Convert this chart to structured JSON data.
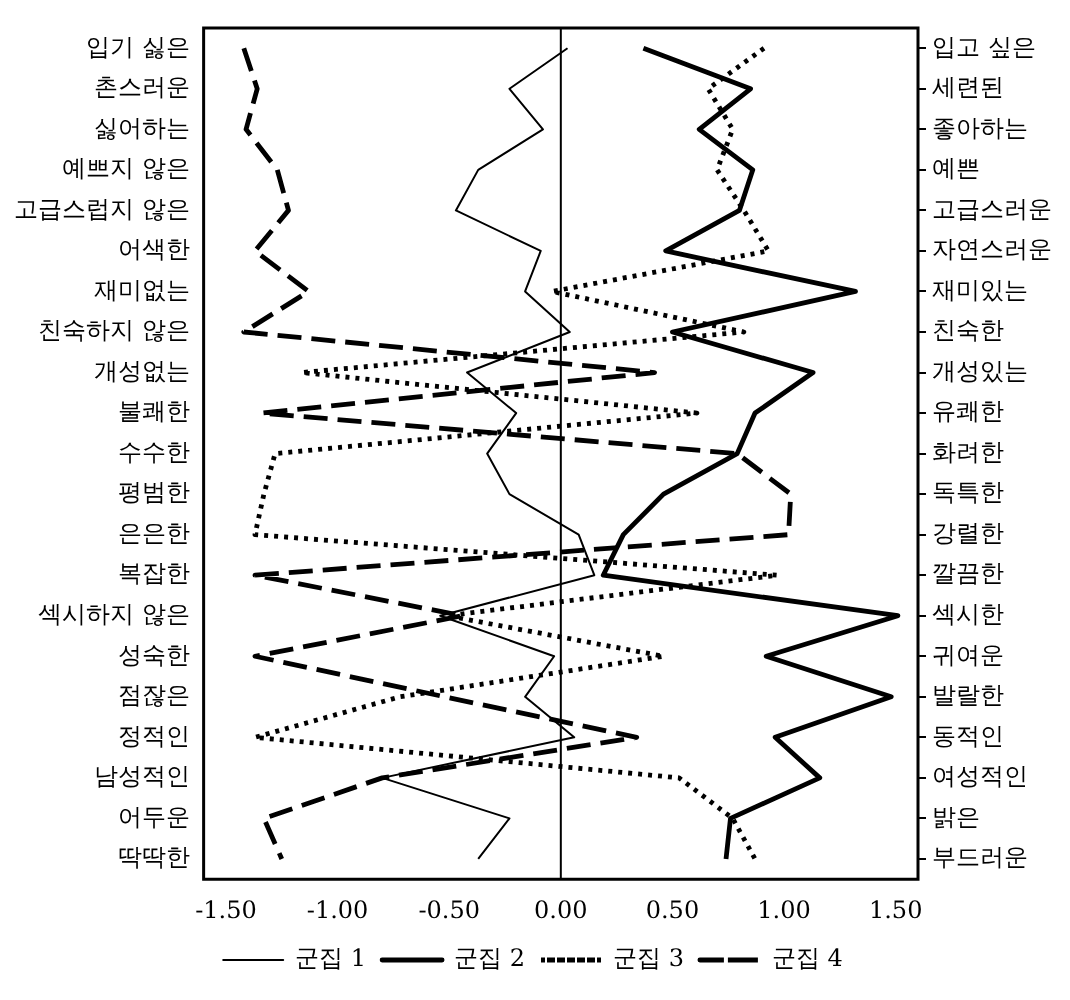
{
  "chart_data": {
    "type": "line",
    "orientation": "horizontal",
    "categories": [
      "입기 싫은",
      "촌스러운",
      "싫어하는",
      "예쁘지 않은",
      "고급스럽지 않은",
      "어색한",
      "재미없는",
      "친숙하지 않은",
      "개성없는",
      "불쾌한",
      "수수한",
      "평범한",
      "은은한",
      "복잡한",
      "섹시하지 않은",
      "성숙한",
      "점잖은",
      "정적인",
      "남성적인",
      "어두운",
      "딱딱한"
    ],
    "y2_categories": [
      "입고 싶은",
      "세련된",
      "좋아하는",
      "예쁜",
      "고급스러운",
      "자연스러운",
      "재미있는",
      "친숙한",
      "개성있는",
      "유쾌한",
      "화려한",
      "독특한",
      "강렬한",
      "깔끔한",
      "섹시한",
      "귀여운",
      "발랄한",
      "동적인",
      "여성적인",
      "밝은",
      "부드러운"
    ],
    "xlim": [
      -1.6,
      1.6
    ],
    "xticks": [
      {
        "value": -1.5,
        "label": "-1.50"
      },
      {
        "value": -1,
        "label": "-1.00"
      },
      {
        "value": -0.5,
        "label": "-0.50"
      },
      {
        "value": 0,
        "label": "0.00"
      },
      {
        "value": 0.5,
        "label": "0.50"
      },
      {
        "value": 1,
        "label": "1.00"
      },
      {
        "value": 1.5,
        "label": "1.50"
      }
    ],
    "ref_lines": [
      {
        "axis": "x",
        "value": 0
      }
    ],
    "grid": false,
    "legend": "bottom",
    "marker": "none",
    "series": [
      {
        "name": "군집 1",
        "color": "#000000",
        "line_style": "solid",
        "values": [
          0.03,
          -0.23,
          -0.08,
          -0.37,
          -0.47,
          -0.09,
          -0.16,
          0.04,
          -0.42,
          -0.2,
          -0.33,
          -0.23,
          0.08,
          0.15,
          -0.54,
          -0.03,
          -0.16,
          0.06,
          -0.8,
          -0.23,
          -0.37
        ]
      },
      {
        "name": "군집 2",
        "color": "#000000",
        "line_style": "solid",
        "values": [
          0.37,
          0.85,
          0.62,
          0.86,
          0.8,
          0.47,
          1.32,
          0.5,
          1.13,
          0.87,
          0.79,
          0.46,
          0.28,
          0.19,
          1.51,
          0.92,
          1.48,
          0.96,
          1.16,
          0.76,
          0.74
        ]
      },
      {
        "name": "군집 3",
        "color": "#000000",
        "line_style": "dotted",
        "values": [
          0.91,
          0.66,
          0.77,
          0.7,
          0.82,
          0.93,
          -0.04,
          0.82,
          -1.16,
          0.61,
          -1.28,
          -1.33,
          -1.37,
          0.97,
          -0.51,
          0.46,
          -0.72,
          -1.37,
          0.53,
          0.77,
          0.87
        ]
      },
      {
        "name": "군집 4",
        "color": "#000000",
        "line_style": "dashed",
        "values": [
          -1.42,
          -1.36,
          -1.41,
          -1.27,
          -1.22,
          -1.37,
          -1.13,
          -1.42,
          0.42,
          -1.34,
          0.79,
          1.03,
          1.02,
          -1.37,
          -0.44,
          -1.37,
          -0.52,
          0.34,
          -0.8,
          -1.33,
          -1.25
        ]
      }
    ]
  }
}
